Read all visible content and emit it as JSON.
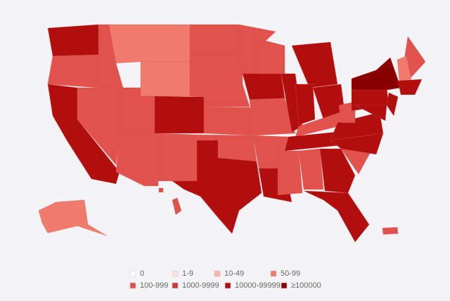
{
  "legend": {
    "items": [
      {
        "label": "0",
        "color": "#ffffff"
      },
      {
        "label": "1-9",
        "color": "#fde3dc"
      },
      {
        "label": "10-49",
        "color": "#f8b4a6"
      },
      {
        "label": "50-99",
        "color": "#f07b6d"
      },
      {
        "label": "100-999",
        "color": "#e1524d"
      },
      {
        "label": "1000-9999",
        "color": "#cf3532"
      },
      {
        "label": "10000-99999",
        "color": "#b30e0e"
      },
      {
        "label": "≥100000",
        "color": "#8a0000"
      }
    ]
  }
}
